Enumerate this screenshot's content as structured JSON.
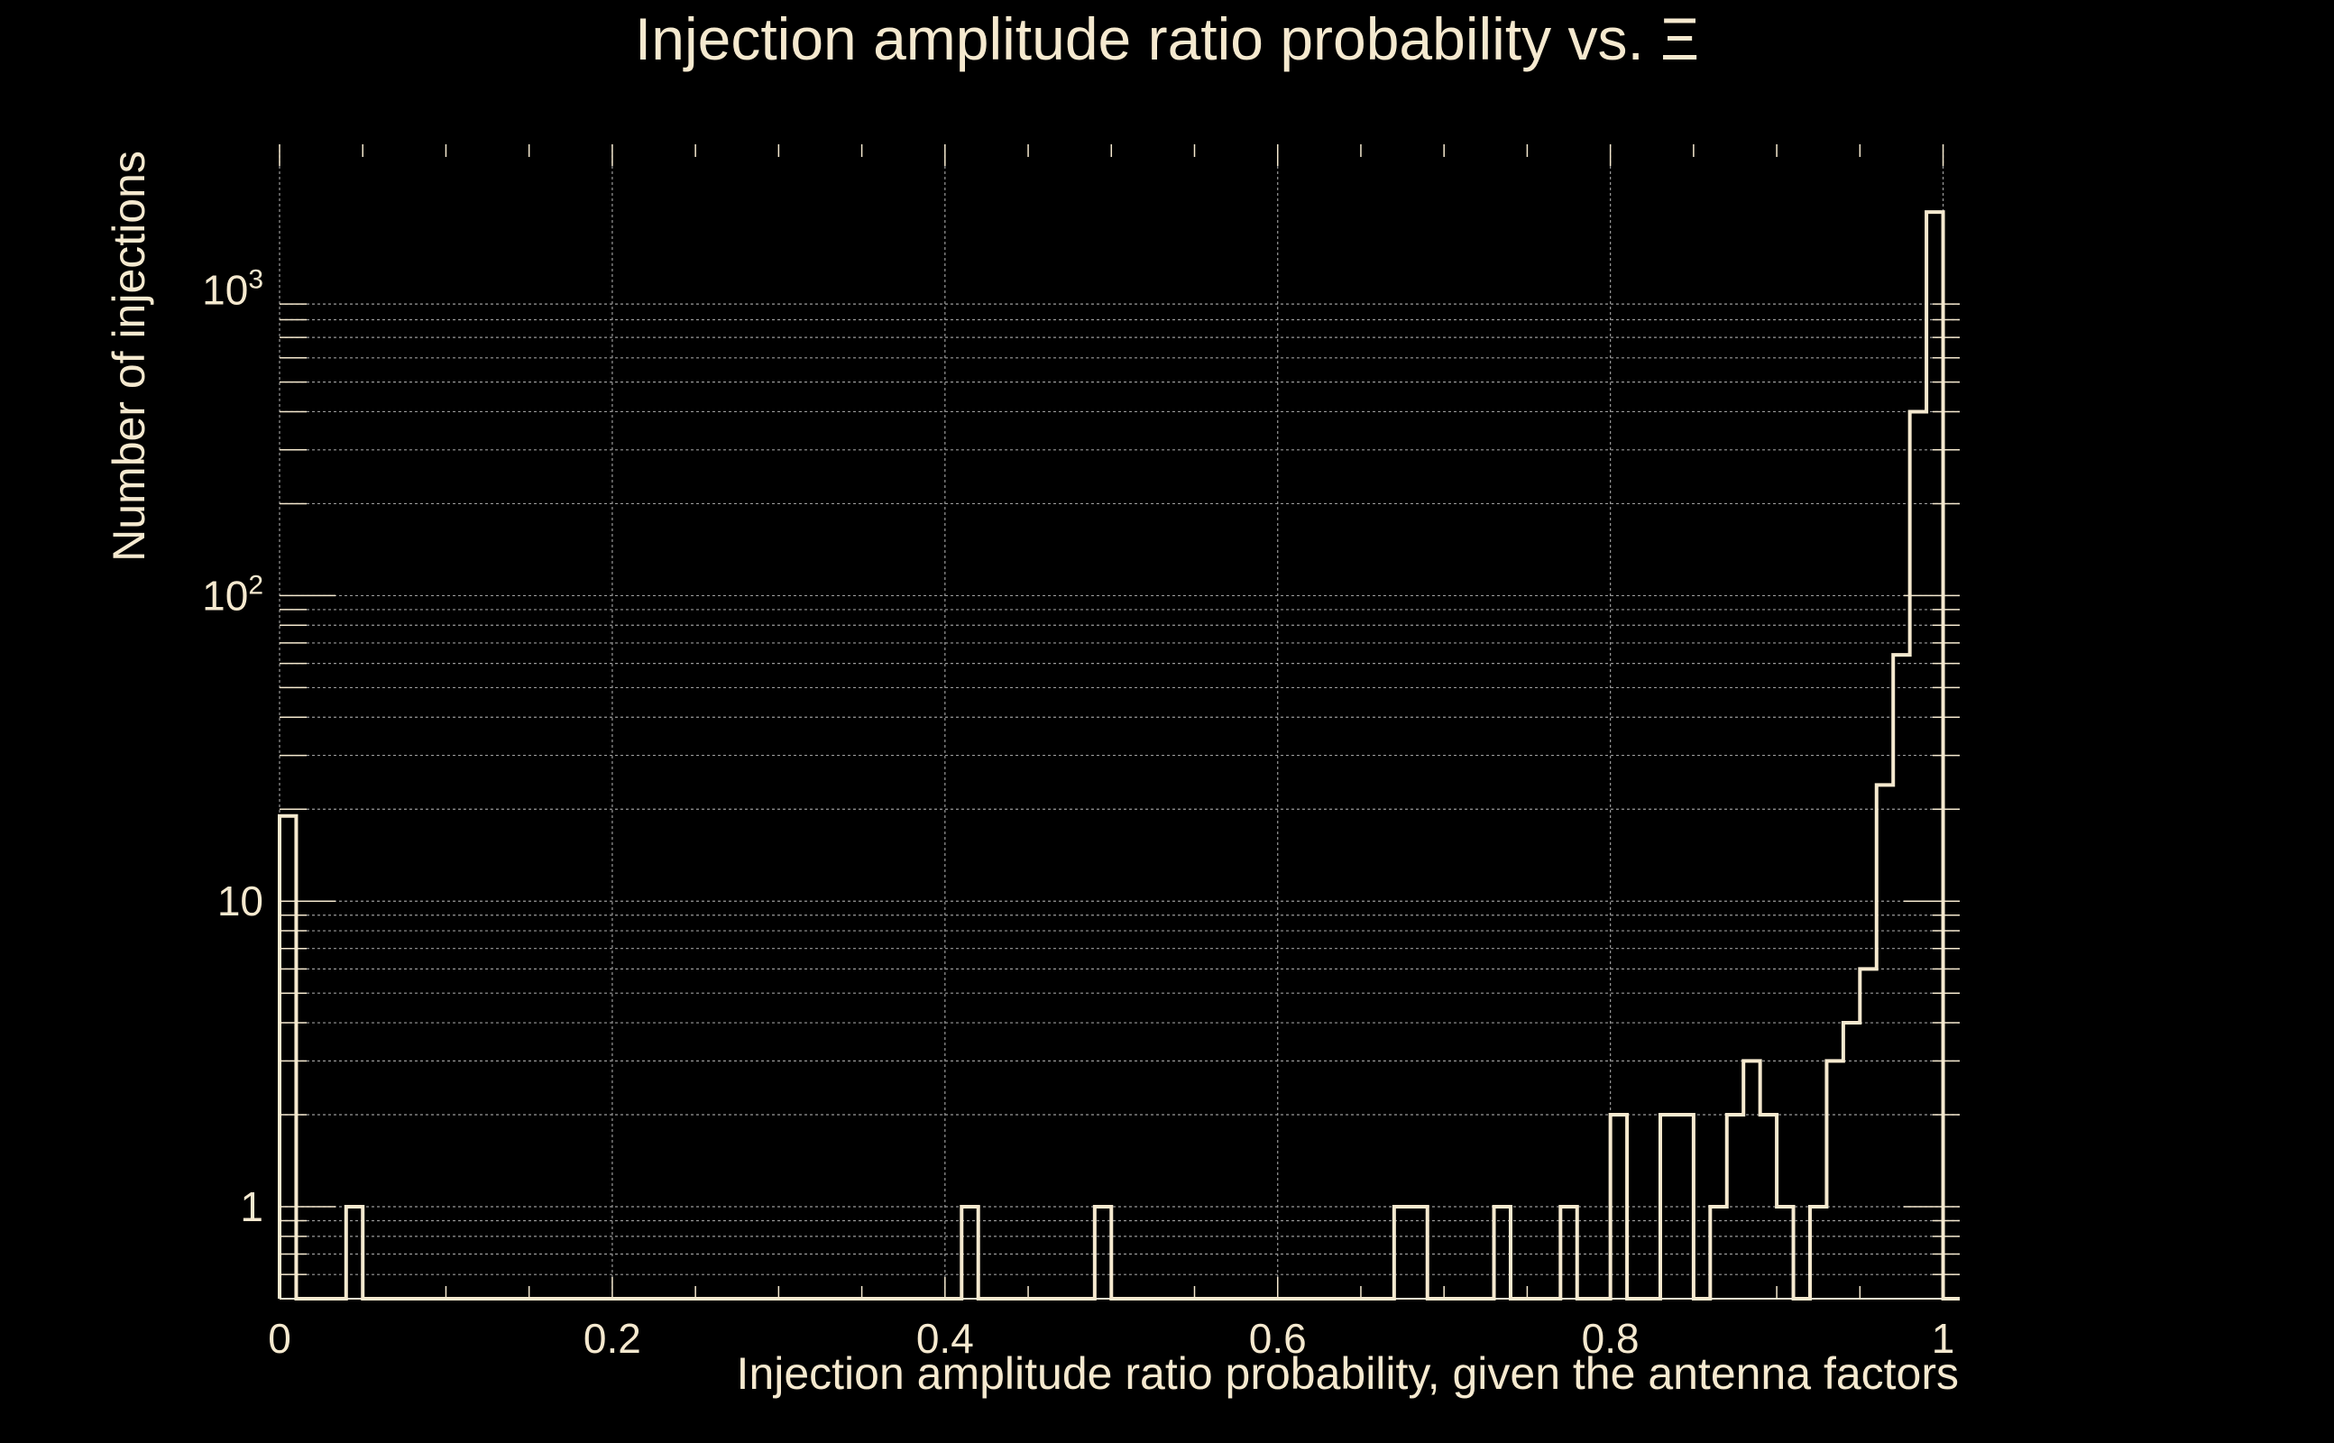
{
  "colors": {
    "background": "#000000",
    "foreground": "#f5e9cf",
    "grid": "#9a9a9a"
  },
  "chart_data": {
    "type": "histogram",
    "title": "Injection amplitude ratio probability vs.  Ξ",
    "xlabel": "Injection amplitude ratio probability, given the antenna factors",
    "ylabel": "Number of injections",
    "xlim": [
      0,
      1.01
    ],
    "ylim": [
      0.5,
      3000
    ],
    "yscale": "log",
    "grid": true,
    "x_ticks": [
      {
        "value": 0,
        "label": "0"
      },
      {
        "value": 0.2,
        "label": "0.2"
      },
      {
        "value": 0.4,
        "label": "0.4"
      },
      {
        "value": 0.6,
        "label": "0.6"
      },
      {
        "value": 0.8,
        "label": "0.8"
      },
      {
        "value": 1,
        "label": "1"
      }
    ],
    "y_ticks": [
      {
        "value": 1,
        "base": "1",
        "exp": ""
      },
      {
        "value": 10,
        "base": "10",
        "exp": ""
      },
      {
        "value": 100,
        "base": "10",
        "exp": "2"
      },
      {
        "value": 1000,
        "base": "10",
        "exp": "3"
      }
    ],
    "bin_width": 0.01,
    "bins": [
      {
        "x": 0.0,
        "count": 19
      },
      {
        "x": 0.04,
        "count": 1
      },
      {
        "x": 0.41,
        "count": 1
      },
      {
        "x": 0.49,
        "count": 1
      },
      {
        "x": 0.67,
        "count": 1
      },
      {
        "x": 0.68,
        "count": 1
      },
      {
        "x": 0.73,
        "count": 1
      },
      {
        "x": 0.77,
        "count": 1
      },
      {
        "x": 0.8,
        "count": 2
      },
      {
        "x": 0.83,
        "count": 2
      },
      {
        "x": 0.84,
        "count": 2
      },
      {
        "x": 0.86,
        "count": 1
      },
      {
        "x": 0.87,
        "count": 2
      },
      {
        "x": 0.88,
        "count": 3
      },
      {
        "x": 0.89,
        "count": 2
      },
      {
        "x": 0.9,
        "count": 1
      },
      {
        "x": 0.92,
        "count": 1
      },
      {
        "x": 0.93,
        "count": 3
      },
      {
        "x": 0.94,
        "count": 4
      },
      {
        "x": 0.95,
        "count": 6
      },
      {
        "x": 0.96,
        "count": 24
      },
      {
        "x": 0.97,
        "count": 64
      },
      {
        "x": 0.98,
        "count": 400
      },
      {
        "x": 0.99,
        "count": 1800
      }
    ]
  }
}
